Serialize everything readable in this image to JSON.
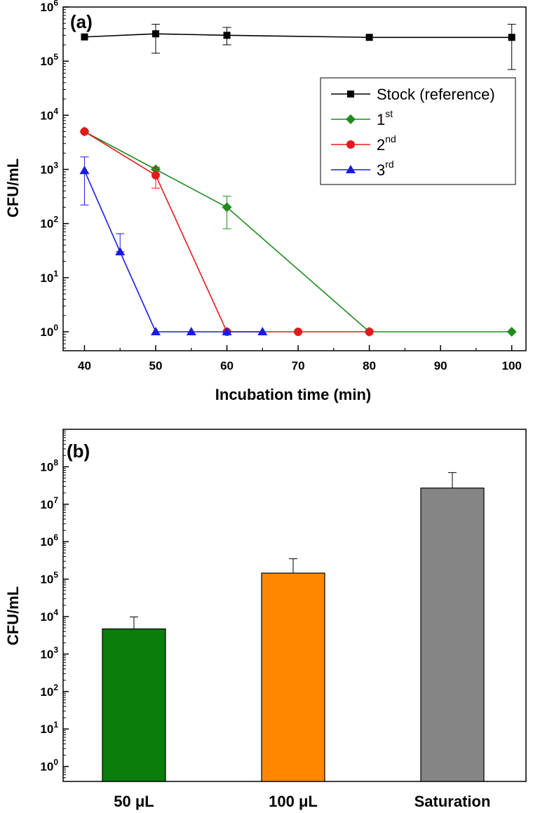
{
  "chart_data": [
    {
      "panel": "(a)",
      "type": "line",
      "xlabel": "Incubation time (min)",
      "ylabel": "CFU/mL",
      "yscale": "log",
      "xlim": [
        37,
        102
      ],
      "ylim_exp": [
        -0.35,
        6
      ],
      "xticks": [
        40,
        50,
        60,
        70,
        80,
        90,
        100
      ],
      "yticks_exp": [
        0,
        1,
        2,
        3,
        4,
        5,
        6
      ],
      "series": [
        {
          "name": "Stock (reference)",
          "legend_base": "Stock (reference)",
          "legend_sup": "",
          "color": "#000000",
          "marker": "square",
          "x": [
            40,
            50,
            60,
            80,
            100
          ],
          "y": [
            280000,
            320000,
            300000,
            275000,
            275000
          ],
          "err_low": [
            280000,
            140000,
            200000,
            275000,
            70000
          ],
          "err_high": [
            280000,
            480000,
            420000,
            275000,
            480000
          ]
        },
        {
          "name": "1st",
          "legend_base": "1",
          "legend_sup": "st",
          "color": "#1e8c1e",
          "marker": "diamond",
          "x": [
            40,
            50,
            60,
            80,
            100
          ],
          "y": [
            5000,
            1000,
            200,
            1,
            1
          ],
          "err_low": [
            5000,
            1000,
            80,
            1,
            1
          ],
          "err_high": [
            5000,
            1000,
            320,
            1,
            1
          ]
        },
        {
          "name": "2nd",
          "legend_base": "2",
          "legend_sup": "nd",
          "color": "#e31a1c",
          "marker": "circle",
          "x": [
            40,
            50,
            60,
            70,
            80
          ],
          "y": [
            5000,
            780,
            1,
            1,
            1
          ],
          "err_low": [
            5000,
            450,
            1,
            1,
            1
          ],
          "err_high": [
            5000,
            1100,
            1,
            1,
            1
          ]
        },
        {
          "name": "3rd",
          "legend_base": "3",
          "legend_sup": "rd",
          "color": "#1a1ae6",
          "marker": "triangle",
          "x": [
            40,
            45,
            50,
            55,
            60,
            65
          ],
          "y": [
            950,
            30,
            1,
            1,
            1,
            1
          ],
          "err_low": [
            220,
            30,
            1,
            1,
            1,
            1
          ],
          "err_high": [
            1700,
            65,
            1,
            1,
            1,
            1
          ]
        }
      ]
    },
    {
      "panel": "(b)",
      "type": "bar",
      "ylabel": "CFU/mL",
      "yscale": "log",
      "ylim_exp": [
        -0.4,
        9
      ],
      "yticks_exp": [
        0,
        1,
        2,
        3,
        4,
        5,
        6,
        7,
        8
      ],
      "categories": [
        "50 μL",
        "100 μL",
        "Saturation"
      ],
      "values": [
        4700,
        145000,
        27000000
      ],
      "err_high": [
        9800,
        350000,
        70000000
      ],
      "colors": [
        "#0a7d0a",
        "#ff8800",
        "#858585"
      ]
    }
  ]
}
